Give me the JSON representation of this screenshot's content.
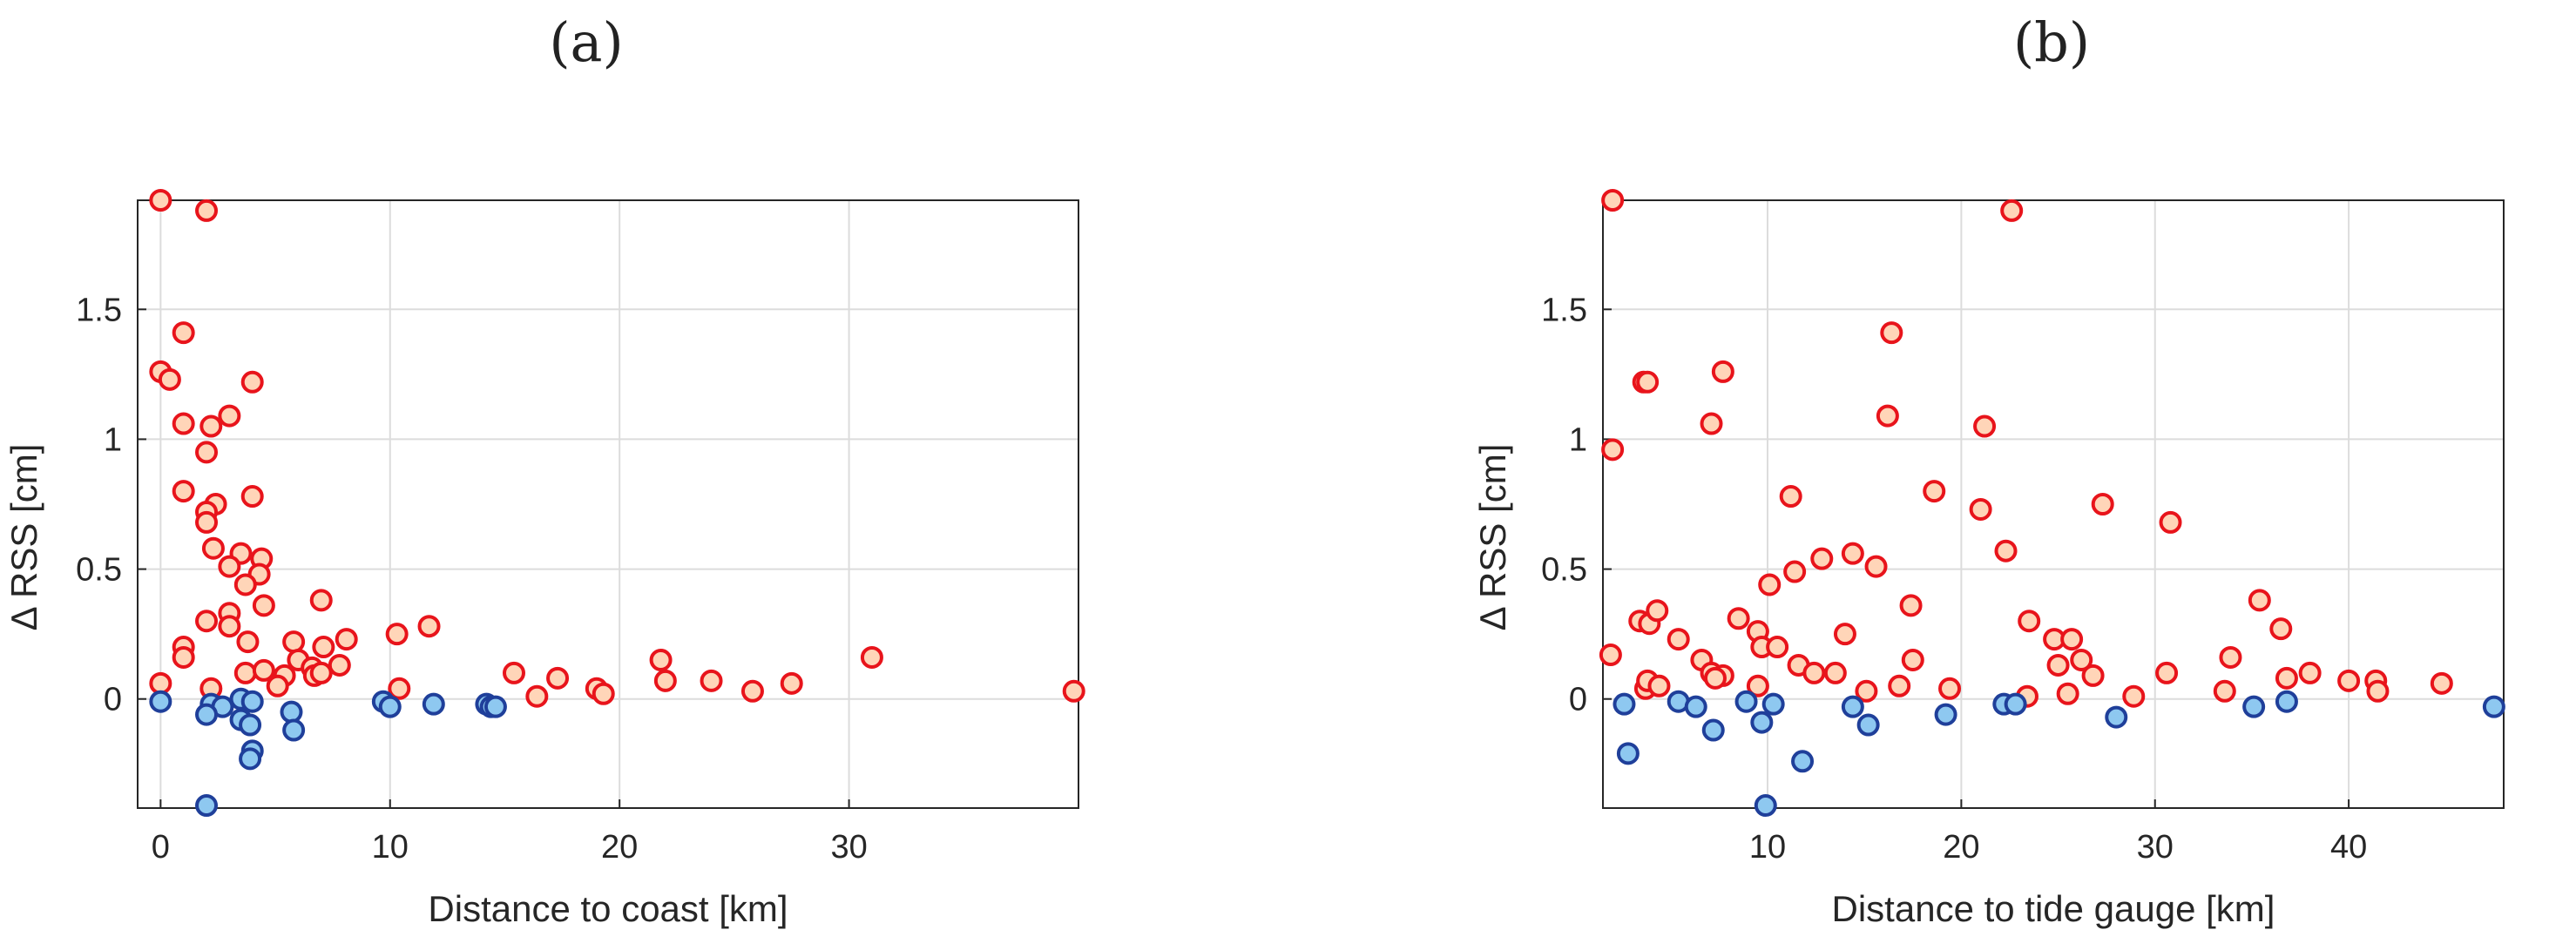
{
  "panels": [
    {
      "label": "(a)"
    },
    {
      "label": "(b)"
    }
  ],
  "colors": {
    "positive_fill": "#ffd5b8",
    "positive_edge": "#e8141b",
    "negative_fill": "#8ec8f0",
    "negative_edge": "#1f3f9a"
  },
  "chart_data": [
    {
      "type": "scatter",
      "title": "(a)",
      "xlabel": "Distance to coast [km]",
      "ylabel": "Δ RSS [cm]",
      "xlim": [
        -1,
        40
      ],
      "ylim": [
        -0.42,
        1.92
      ],
      "xticks": [
        0,
        10,
        20,
        30
      ],
      "yticks": [
        0,
        0.5,
        1,
        1.5
      ],
      "grid": true,
      "series": [
        {
          "points": [
            [
              0.0,
              1.92
            ],
            [
              2.0,
              1.88
            ],
            [
              1.0,
              1.41
            ],
            [
              0.0,
              1.26
            ],
            [
              0.4,
              1.23
            ],
            [
              4.0,
              1.22
            ],
            [
              3.0,
              1.09
            ],
            [
              1.0,
              1.06
            ],
            [
              2.2,
              1.05
            ],
            [
              2.0,
              0.95
            ],
            [
              1.0,
              0.8
            ],
            [
              4.0,
              0.78
            ],
            [
              2.4,
              0.75
            ],
            [
              2.0,
              0.72
            ],
            [
              2.0,
              0.68
            ],
            [
              2.3,
              0.58
            ],
            [
              3.5,
              0.56
            ],
            [
              4.4,
              0.54
            ],
            [
              3.0,
              0.51
            ],
            [
              4.3,
              0.48
            ],
            [
              3.7,
              0.44
            ],
            [
              7.0,
              0.38
            ],
            [
              4.5,
              0.36
            ],
            [
              3.0,
              0.33
            ],
            [
              2.0,
              0.3
            ],
            [
              3.0,
              0.28
            ],
            [
              11.7,
              0.28
            ],
            [
              10.3,
              0.25
            ],
            [
              8.1,
              0.23
            ],
            [
              3.8,
              0.22
            ],
            [
              5.8,
              0.22
            ],
            [
              1.0,
              0.2
            ],
            [
              7.1,
              0.2
            ],
            [
              1.0,
              0.16
            ],
            [
              6.0,
              0.15
            ],
            [
              21.8,
              0.15
            ],
            [
              31.0,
              0.16
            ],
            [
              6.6,
              0.12
            ],
            [
              7.8,
              0.13
            ],
            [
              3.7,
              0.1
            ],
            [
              4.5,
              0.11
            ],
            [
              5.4,
              0.09
            ],
            [
              6.7,
              0.09
            ],
            [
              7.0,
              0.1
            ],
            [
              15.4,
              0.1
            ],
            [
              17.3,
              0.08
            ],
            [
              22.0,
              0.07
            ],
            [
              24.0,
              0.07
            ],
            [
              27.5,
              0.06
            ],
            [
              5.1,
              0.05
            ],
            [
              10.4,
              0.04
            ],
            [
              19.0,
              0.04
            ],
            [
              25.8,
              0.03
            ],
            [
              19.3,
              0.02
            ],
            [
              39.8,
              0.03
            ],
            [
              2.2,
              0.04
            ],
            [
              0.0,
              0.06
            ],
            [
              16.4,
              0.01
            ]
          ]
        },
        {
          "points": [
            [
              0.0,
              -0.01
            ],
            [
              2.2,
              -0.02
            ],
            [
              2.7,
              -0.03
            ],
            [
              3.5,
              0.0
            ],
            [
              4.0,
              -0.01
            ],
            [
              2.0,
              -0.06
            ],
            [
              3.5,
              -0.08
            ],
            [
              3.9,
              -0.1
            ],
            [
              5.7,
              -0.05
            ],
            [
              5.8,
              -0.12
            ],
            [
              9.7,
              -0.01
            ],
            [
              10.0,
              -0.03
            ],
            [
              11.9,
              -0.02
            ],
            [
              14.2,
              -0.02
            ],
            [
              14.4,
              -0.03
            ],
            [
              14.6,
              -0.03
            ],
            [
              4.0,
              -0.2
            ],
            [
              3.9,
              -0.23
            ],
            [
              2.0,
              -0.41
            ]
          ]
        }
      ]
    },
    {
      "type": "scatter",
      "title": "(b)",
      "xlabel": "Distance to tide gauge [km]",
      "ylabel": "Δ RSS [cm]",
      "xlim": [
        1.5,
        48
      ],
      "ylim": [
        -0.42,
        1.92
      ],
      "xticks": [
        10,
        20,
        30,
        40
      ],
      "yticks": [
        0,
        0.5,
        1,
        1.5
      ],
      "grid": true,
      "series": [
        {
          "points": [
            [
              1.9,
              0.17
            ],
            [
              2.0,
              1.92
            ],
            [
              2.0,
              0.96
            ],
            [
              3.6,
              1.22
            ],
            [
              3.8,
              1.22
            ],
            [
              3.4,
              0.3
            ],
            [
              3.9,
              0.29
            ],
            [
              4.3,
              0.34
            ],
            [
              3.7,
              0.04
            ],
            [
              3.8,
              0.07
            ],
            [
              4.4,
              0.05
            ],
            [
              5.4,
              0.23
            ],
            [
              6.6,
              0.15
            ],
            [
              7.1,
              0.1
            ],
            [
              7.7,
              0.09
            ],
            [
              7.1,
              1.06
            ],
            [
              7.7,
              1.26
            ],
            [
              8.5,
              0.31
            ],
            [
              9.5,
              0.26
            ],
            [
              9.7,
              0.2
            ],
            [
              10.1,
              0.44
            ],
            [
              10.5,
              0.2
            ],
            [
              11.2,
              0.78
            ],
            [
              11.4,
              0.49
            ],
            [
              11.6,
              0.13
            ],
            [
              12.4,
              0.1
            ],
            [
              12.8,
              0.54
            ],
            [
              13.5,
              0.1
            ],
            [
              14.0,
              0.25
            ],
            [
              14.4,
              0.56
            ],
            [
              15.1,
              0.03
            ],
            [
              15.6,
              0.51
            ],
            [
              16.2,
              1.09
            ],
            [
              16.4,
              1.41
            ],
            [
              16.8,
              0.05
            ],
            [
              17.4,
              0.36
            ],
            [
              17.5,
              0.15
            ],
            [
              18.6,
              0.8
            ],
            [
              19.4,
              0.04
            ],
            [
              21.0,
              0.73
            ],
            [
              21.2,
              1.05
            ],
            [
              22.3,
              0.57
            ],
            [
              22.6,
              1.88
            ],
            [
              23.5,
              0.3
            ],
            [
              23.4,
              0.01
            ],
            [
              24.8,
              0.23
            ],
            [
              25.0,
              0.13
            ],
            [
              25.7,
              0.23
            ],
            [
              25.5,
              0.02
            ],
            [
              26.2,
              0.15
            ],
            [
              26.8,
              0.09
            ],
            [
              27.3,
              0.75
            ],
            [
              28.9,
              0.01
            ],
            [
              30.6,
              0.1
            ],
            [
              30.8,
              0.68
            ],
            [
              33.6,
              0.03
            ],
            [
              33.9,
              0.16
            ],
            [
              35.4,
              0.38
            ],
            [
              36.5,
              0.27
            ],
            [
              36.8,
              0.08
            ],
            [
              38.0,
              0.1
            ],
            [
              40.0,
              0.07
            ],
            [
              41.4,
              0.07
            ],
            [
              41.5,
              0.03
            ],
            [
              44.8,
              0.06
            ],
            [
              7.3,
              0.08
            ],
            [
              9.5,
              0.05
            ]
          ]
        },
        {
          "points": [
            [
              2.6,
              -0.02
            ],
            [
              2.8,
              -0.21
            ],
            [
              5.4,
              -0.01
            ],
            [
              6.3,
              -0.03
            ],
            [
              7.2,
              -0.12
            ],
            [
              8.9,
              -0.01
            ],
            [
              9.7,
              -0.09
            ],
            [
              10.3,
              -0.02
            ],
            [
              11.8,
              -0.24
            ],
            [
              14.4,
              -0.03
            ],
            [
              15.2,
              -0.1
            ],
            [
              19.2,
              -0.06
            ],
            [
              22.2,
              -0.02
            ],
            [
              22.8,
              -0.02
            ],
            [
              28.0,
              -0.07
            ],
            [
              35.1,
              -0.03
            ],
            [
              36.8,
              -0.01
            ],
            [
              47.5,
              -0.03
            ],
            [
              9.9,
              -0.41
            ]
          ]
        }
      ]
    }
  ]
}
